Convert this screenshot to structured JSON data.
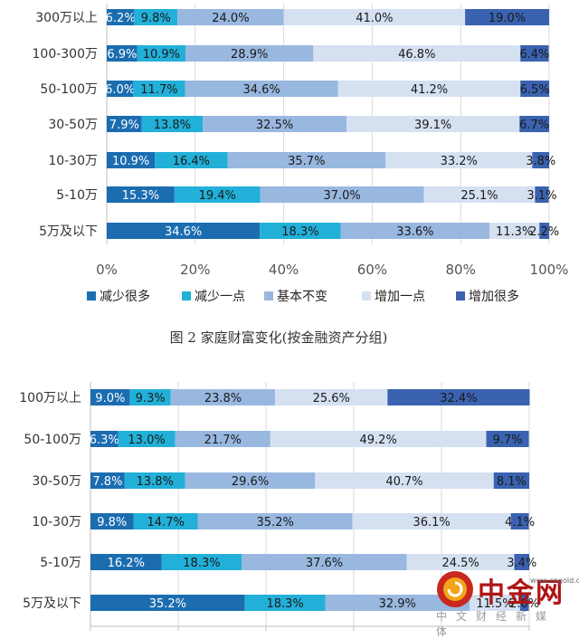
{
  "chart_data": [
    {
      "type": "bar",
      "stacked": true,
      "orientation": "horizontal",
      "title": "图 2 家庭财富变化(按金融资产分组)",
      "categories": [
        "300万以上",
        "100-300万",
        "50-100万",
        "30-50万",
        "10-30万",
        "5-10万",
        "5万及以下"
      ],
      "series": [
        {
          "name": "减少很多",
          "values": [
            6.2,
            6.9,
            6.0,
            7.9,
            10.9,
            15.3,
            34.6
          ],
          "labels": [
            "6.2%",
            "6.9%",
            "6.0%",
            "7.9%",
            "10.9%",
            "15.3%",
            "34.6%"
          ]
        },
        {
          "name": "减少一点",
          "values": [
            9.8,
            10.9,
            11.7,
            13.8,
            16.4,
            19.4,
            18.3
          ],
          "labels": [
            "9.8%",
            "10.9%",
            "11.7%",
            "13.8%",
            "16.4%",
            "19.4%",
            "18.3%"
          ]
        },
        {
          "name": "基本不变",
          "values": [
            24.0,
            28.9,
            34.6,
            32.5,
            35.7,
            37.0,
            33.6
          ],
          "labels": [
            "24.0%",
            "28.9%",
            "34.6%",
            "32.5%",
            "35.7%",
            "37.0%",
            "33.6%"
          ]
        },
        {
          "name": "增加一点",
          "values": [
            41.0,
            46.8,
            41.2,
            39.1,
            33.2,
            25.1,
            11.3
          ],
          "labels": [
            "41.0%",
            "46.8%",
            "41.2%",
            "39.1%",
            "33.2%",
            "25.1%",
            "11.3%"
          ]
        },
        {
          "name": "增加很多",
          "values": [
            19.0,
            6.4,
            6.5,
            6.7,
            3.8,
            3.1,
            2.2
          ],
          "labels": [
            "19.0%",
            "6.4%",
            "6.5%",
            "6.7%",
            "3.8%",
            "3.1%",
            "2.2%"
          ]
        }
      ],
      "xlim": [
        0,
        100
      ],
      "xticks": [
        "0%",
        "20%",
        "40%",
        "60%",
        "80%",
        "100%"
      ],
      "legend": "bottom"
    },
    {
      "type": "bar",
      "stacked": true,
      "orientation": "horizontal",
      "categories": [
        "100万以上",
        "50-100万",
        "30-50万",
        "10-30万",
        "5-10万",
        "5万及以下"
      ],
      "series": [
        {
          "name": "减少很多",
          "values": [
            9.0,
            6.3,
            7.8,
            9.8,
            16.2,
            35.2
          ],
          "labels": [
            "9.0%",
            "6.3%",
            "7.8%",
            "9.8%",
            "16.2%",
            "35.2%"
          ]
        },
        {
          "name": "减少一点",
          "values": [
            9.3,
            13.0,
            13.8,
            14.7,
            18.3,
            18.3
          ],
          "labels": [
            "9.3%",
            "13.0%",
            "13.8%",
            "14.7%",
            "18.3%",
            "18.3%"
          ]
        },
        {
          "name": "基本不变",
          "values": [
            23.8,
            21.7,
            29.6,
            35.2,
            37.6,
            32.9
          ],
          "labels": [
            "23.8%",
            "21.7%",
            "29.6%",
            "35.2%",
            "37.6%",
            "32.9%"
          ]
        },
        {
          "name": "增加一点",
          "values": [
            25.6,
            49.2,
            40.7,
            36.1,
            24.5,
            11.5
          ],
          "labels": [
            "25.6%",
            "49.2%",
            "40.7%",
            "36.1%",
            "24.5%",
            "11.5%"
          ]
        },
        {
          "name": "增加很多",
          "values": [
            32.4,
            9.7,
            8.1,
            4.1,
            3.4,
            2.0
          ],
          "labels": [
            "32.4%",
            "9.7%",
            "8.1%",
            "4.1%",
            "3.4%",
            "2.0%"
          ]
        }
      ],
      "xlim": [
        0,
        100
      ]
    }
  ],
  "colors": [
    "#1b6db0",
    "#22b0d9",
    "#98b8e0",
    "#d5e1f1",
    "#3a62b0"
  ],
  "watermark": {
    "main": "中金网",
    "url": "www.cngold.org",
    "sub": "中文财经新媒体"
  }
}
